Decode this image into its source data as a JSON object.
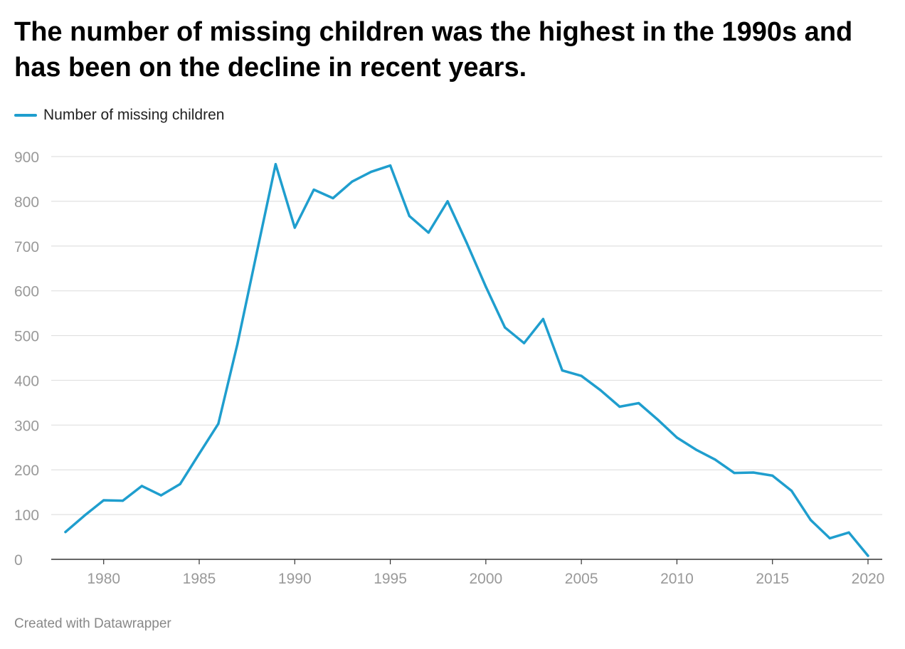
{
  "title": "The number of missing children was the highest in the 1990s and has been on the decline in recent years.",
  "footer": "Created with Datawrapper",
  "colors": {
    "series": "#1f9ece",
    "grid": "#e0e0e0",
    "axis": "#333333",
    "tick_label": "#999999"
  },
  "chart_data": {
    "type": "line",
    "xlim": [
      1978,
      2020
    ],
    "ylim": [
      0,
      900
    ],
    "x_ticks": [
      1980,
      1985,
      1990,
      1995,
      2000,
      2005,
      2010,
      2015,
      2020
    ],
    "y_ticks": [
      0,
      100,
      200,
      300,
      400,
      500,
      600,
      700,
      800,
      900
    ],
    "grid": true,
    "legend_position": "top-left",
    "series": [
      {
        "name": "Number of missing children",
        "x": [
          1978,
          1979,
          1980,
          1981,
          1982,
          1983,
          1984,
          1985,
          1986,
          1987,
          1988,
          1989,
          1990,
          1991,
          1992,
          1993,
          1994,
          1995,
          1996,
          1997,
          1998,
          1999,
          2000,
          2001,
          2002,
          2003,
          2004,
          2005,
          2006,
          2007,
          2008,
          2009,
          2010,
          2011,
          2012,
          2013,
          2014,
          2015,
          2016,
          2017,
          2018,
          2019,
          2020
        ],
        "values": [
          61,
          98,
          132,
          131,
          164,
          143,
          168,
          236,
          303,
          481,
          683,
          883,
          741,
          826,
          807,
          844,
          866,
          880,
          767,
          730,
          800,
          707,
          609,
          518,
          483,
          537,
          422,
          410,
          378,
          341,
          349,
          312,
          272,
          245,
          223,
          193,
          194,
          187,
          153,
          88,
          47,
          60,
          8
        ]
      }
    ]
  }
}
